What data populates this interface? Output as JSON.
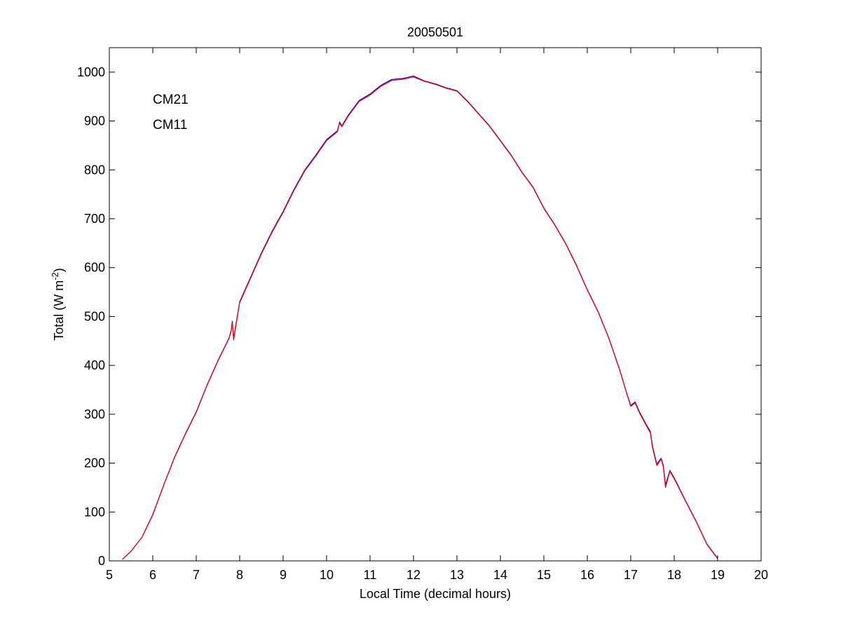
{
  "chart_data": {
    "type": "line",
    "title": "20050501",
    "xlabel": "Local Time (decimal hours)",
    "ylabel": {
      "text": "Total (W m",
      "superscript": "-2",
      "suffix": ")"
    },
    "xlim": [
      5,
      20
    ],
    "ylim": [
      0,
      1050
    ],
    "xticks": [
      5,
      6,
      7,
      8,
      9,
      10,
      11,
      12,
      13,
      14,
      15,
      16,
      17,
      18,
      19,
      20
    ],
    "yticks": [
      0,
      100,
      200,
      300,
      400,
      500,
      600,
      700,
      800,
      900,
      1000
    ],
    "grid": false,
    "legend_location": "top-left",
    "series": [
      {
        "name": "CM21",
        "color": "#0000cc",
        "x": [
          5.3,
          5.5,
          5.75,
          6.0,
          6.25,
          6.5,
          6.75,
          7.0,
          7.25,
          7.5,
          7.75,
          7.8,
          7.83,
          7.86,
          8.0,
          8.25,
          8.5,
          8.75,
          9.0,
          9.25,
          9.5,
          9.75,
          10.0,
          10.25,
          10.3,
          10.35,
          10.5,
          10.75,
          11.0,
          11.25,
          11.5,
          11.75,
          12.0,
          12.25,
          12.5,
          12.75,
          13.0,
          13.25,
          13.5,
          13.75,
          14.0,
          14.25,
          14.5,
          14.75,
          15.0,
          15.25,
          15.5,
          15.75,
          16.0,
          16.25,
          16.5,
          16.75,
          16.9,
          17.0,
          17.1,
          17.2,
          17.35,
          17.45,
          17.5,
          17.6,
          17.7,
          17.75,
          17.8,
          17.9,
          18.0,
          18.25,
          18.5,
          18.75,
          19.0
        ],
        "y": [
          3,
          20,
          48,
          95,
          155,
          212,
          260,
          305,
          360,
          410,
          455,
          470,
          490,
          455,
          530,
          580,
          630,
          675,
          715,
          760,
          800,
          830,
          862,
          880,
          898,
          890,
          912,
          942,
          955,
          973,
          985,
          987,
          992,
          982,
          976,
          968,
          962,
          940,
          915,
          890,
          860,
          830,
          795,
          765,
          722,
          688,
          650,
          605,
          555,
          510,
          455,
          390,
          345,
          318,
          325,
          305,
          280,
          265,
          235,
          198,
          210,
          195,
          155,
          185,
          170,
          125,
          82,
          35,
          5
        ]
      },
      {
        "name": "CM11",
        "color": "#ff0000",
        "x": [
          5.3,
          5.5,
          5.75,
          6.0,
          6.25,
          6.5,
          6.75,
          7.0,
          7.25,
          7.5,
          7.75,
          7.8,
          7.83,
          7.86,
          8.0,
          8.25,
          8.5,
          8.75,
          9.0,
          9.25,
          9.5,
          9.75,
          10.0,
          10.25,
          10.3,
          10.35,
          10.5,
          10.75,
          11.0,
          11.25,
          11.5,
          11.75,
          12.0,
          12.25,
          12.5,
          12.75,
          13.0,
          13.25,
          13.5,
          13.75,
          14.0,
          14.25,
          14.5,
          14.75,
          15.0,
          15.25,
          15.5,
          15.75,
          16.0,
          16.25,
          16.5,
          16.75,
          16.9,
          17.0,
          17.1,
          17.2,
          17.35,
          17.45,
          17.5,
          17.6,
          17.7,
          17.75,
          17.8,
          17.9,
          18.0,
          18.25,
          18.5,
          18.75,
          19.0
        ],
        "y": [
          3,
          20,
          48,
          94,
          154,
          211,
          259,
          304,
          359,
          409,
          454,
          468,
          488,
          452,
          528,
          578,
          628,
          673,
          713,
          758,
          798,
          828,
          860,
          878,
          896,
          888,
          910,
          940,
          953,
          971,
          983,
          985,
          990,
          981,
          975,
          967,
          961,
          939,
          914,
          889,
          859,
          829,
          794,
          764,
          721,
          687,
          649,
          604,
          554,
          509,
          454,
          389,
          344,
          316,
          323,
          303,
          278,
          262,
          232,
          195,
          208,
          192,
          150,
          183,
          168,
          124,
          81,
          34,
          4
        ]
      }
    ]
  }
}
